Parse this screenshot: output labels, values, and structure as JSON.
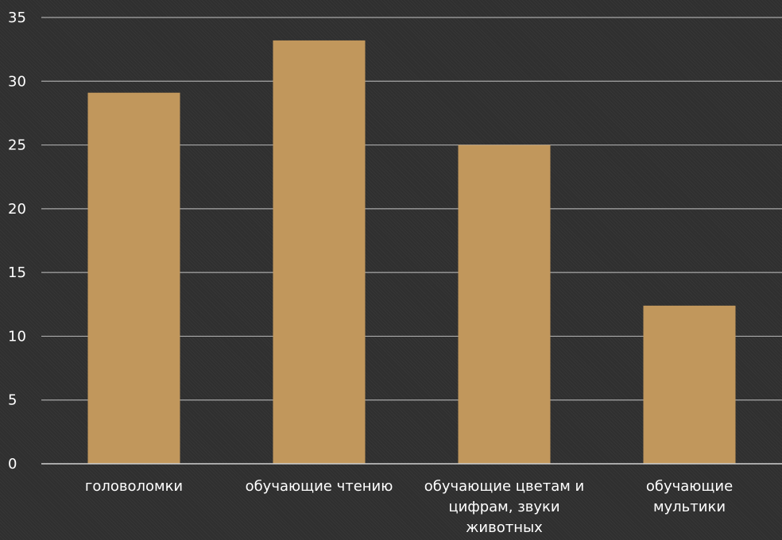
{
  "chart_data": {
    "type": "bar",
    "categories": [
      [
        "головоломки"
      ],
      [
        "обучающие чтению"
      ],
      [
        "обучающие цветам и",
        "цифрам, звуки",
        "животных"
      ],
      [
        "обучающие",
        "мультики"
      ]
    ],
    "values": [
      29.1,
      33.2,
      25,
      12.4
    ],
    "y_ticks": [
      "0",
      "5",
      "10",
      "15",
      "20",
      "25",
      "30",
      "35"
    ],
    "ylim": [
      0,
      35
    ],
    "grid": true,
    "title": "",
    "xlabel": "",
    "ylabel": "",
    "colors": {
      "bar": "#c1975c",
      "grid": "#a8a8a8",
      "axis": "#d0d0d0",
      "text": "#ffffff",
      "background": "#2f2f2f"
    }
  }
}
